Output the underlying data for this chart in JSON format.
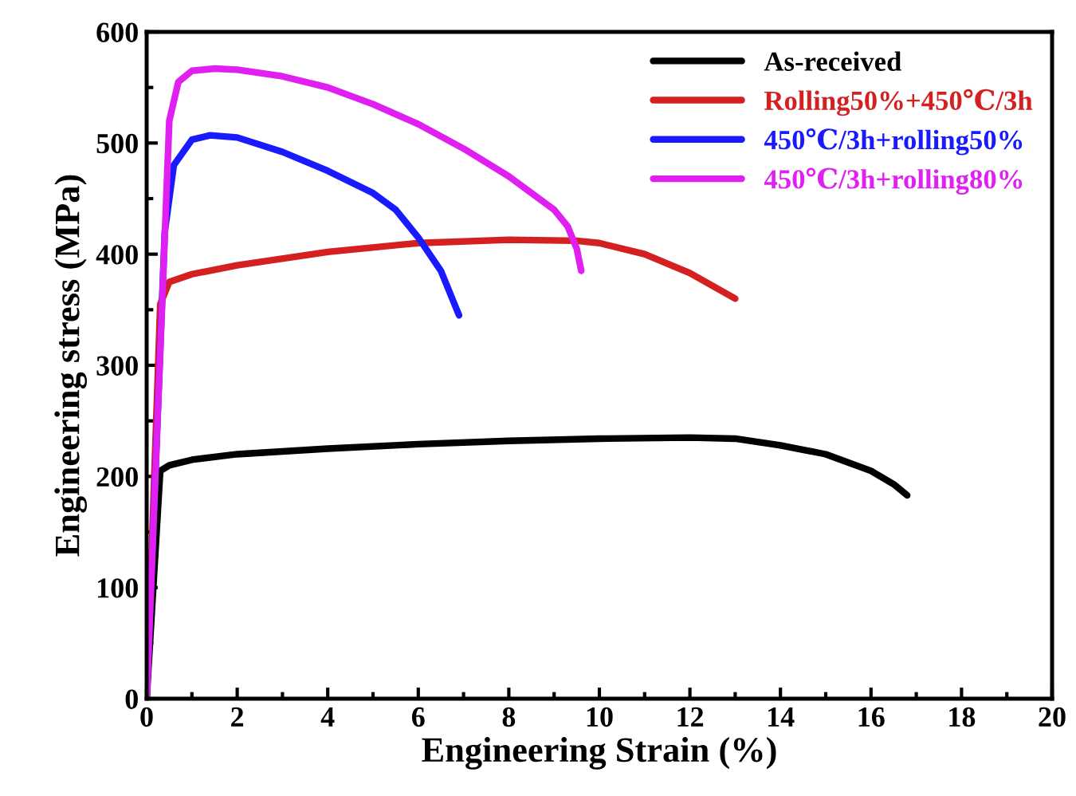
{
  "chart_data": {
    "type": "line",
    "xlabel": "Engineering Strain (%)",
    "ylabel": "Engineering stress (MPa)",
    "xlim": [
      0,
      20
    ],
    "xticks": [
      0,
      2,
      4,
      6,
      8,
      10,
      12,
      14,
      16,
      18,
      20
    ],
    "ylim": [
      0,
      600
    ],
    "yticks": [
      0,
      100,
      200,
      300,
      400,
      500,
      600
    ],
    "grid": false,
    "legend": "top right",
    "marker": "none",
    "line_style": "solid",
    "series": [
      {
        "name": "As-received",
        "color": "#000000",
        "x": [
          0,
          0.3,
          0.5,
          1,
          2,
          4,
          6,
          8,
          10,
          12,
          13,
          14,
          15,
          16,
          16.5,
          16.8
        ],
        "values": [
          0,
          205,
          210,
          215,
          220,
          225,
          229,
          232,
          234,
          235,
          234,
          228,
          220,
          205,
          193,
          183
        ]
      },
      {
        "name": "Rolling50%+450℃/3h",
        "color": "#d42020",
        "x": [
          0,
          0.3,
          0.5,
          1,
          2,
          4,
          6,
          8,
          9.5,
          10,
          11,
          12,
          13
        ],
        "values": [
          0,
          355,
          375,
          382,
          390,
          402,
          410,
          413,
          412,
          410,
          400,
          383,
          360
        ]
      },
      {
        "name": "450℃/3h+rolling50%",
        "color": "#1a1aff",
        "x": [
          0,
          0.4,
          0.6,
          1,
          1.4,
          2,
          3,
          4,
          5,
          5.5,
          6,
          6.5,
          6.9
        ],
        "values": [
          0,
          420,
          480,
          503,
          507,
          505,
          492,
          475,
          455,
          440,
          415,
          385,
          345
        ]
      },
      {
        "name": "450℃/3h+rolling80%",
        "color": "#e020f0",
        "x": [
          0,
          0.5,
          0.7,
          1,
          1.5,
          2,
          3,
          4,
          5,
          6,
          7,
          8,
          9,
          9.3,
          9.5,
          9.6
        ],
        "values": [
          0,
          520,
          555,
          565,
          567,
          566,
          560,
          550,
          535,
          517,
          495,
          470,
          440,
          425,
          405,
          385
        ]
      }
    ]
  }
}
